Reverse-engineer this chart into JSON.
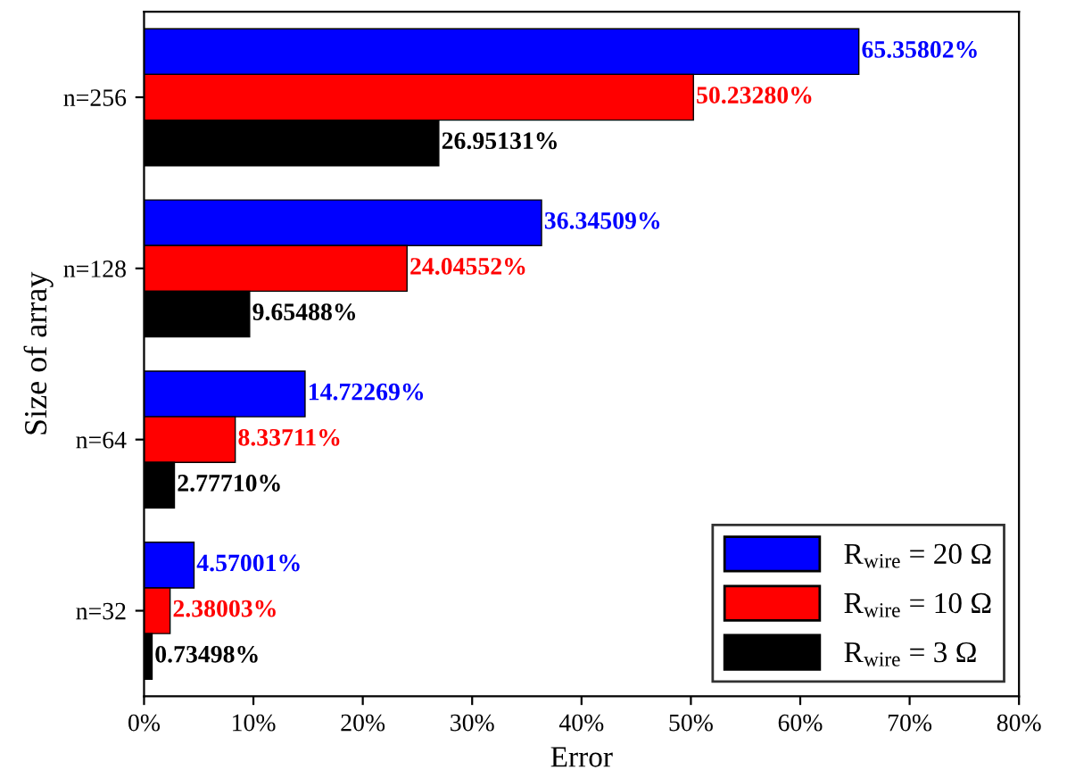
{
  "chart_data": {
    "type": "bar",
    "orientation": "horizontal",
    "xlabel": "Error",
    "ylabel": "Size of array",
    "categories": [
      "n=256",
      "n=128",
      "n=64",
      "n=32"
    ],
    "series": [
      {
        "name": "R$_{wire}$ = 20 Ω",
        "color": "#0000ff",
        "values": [
          65.35802,
          36.34509,
          14.72269,
          4.57001
        ],
        "value_labels": [
          "65.35802%",
          "36.34509%",
          "14.72269%",
          "4.57001%"
        ]
      },
      {
        "name": "R$_{wire}$ = 10 Ω",
        "color": "#ff0000",
        "values": [
          50.2328,
          24.04552,
          8.33711,
          2.38003
        ],
        "value_labels": [
          "50.23280%",
          "24.04552%",
          "8.33711%",
          "2.38003%"
        ]
      },
      {
        "name": "R$_{wire}$ = 3 Ω",
        "color": "#000000",
        "values": [
          26.95131,
          9.65488,
          2.7771,
          0.73498
        ],
        "value_labels": [
          "26.95131%",
          "9.65488%",
          "2.77710%",
          "0.73498%"
        ]
      }
    ],
    "xlim": [
      0,
      80
    ],
    "xticks": [
      {
        "value": 0,
        "label": "0%"
      },
      {
        "value": 10,
        "label": "10%"
      },
      {
        "value": 20,
        "label": "20%"
      },
      {
        "value": 30,
        "label": "30%"
      },
      {
        "value": 40,
        "label": "40%"
      },
      {
        "value": 50,
        "label": "50%"
      },
      {
        "value": 60,
        "label": "60%"
      },
      {
        "value": 70,
        "label": "70%"
      },
      {
        "value": 80,
        "label": "80%"
      }
    ],
    "legend": "bottom right"
  }
}
